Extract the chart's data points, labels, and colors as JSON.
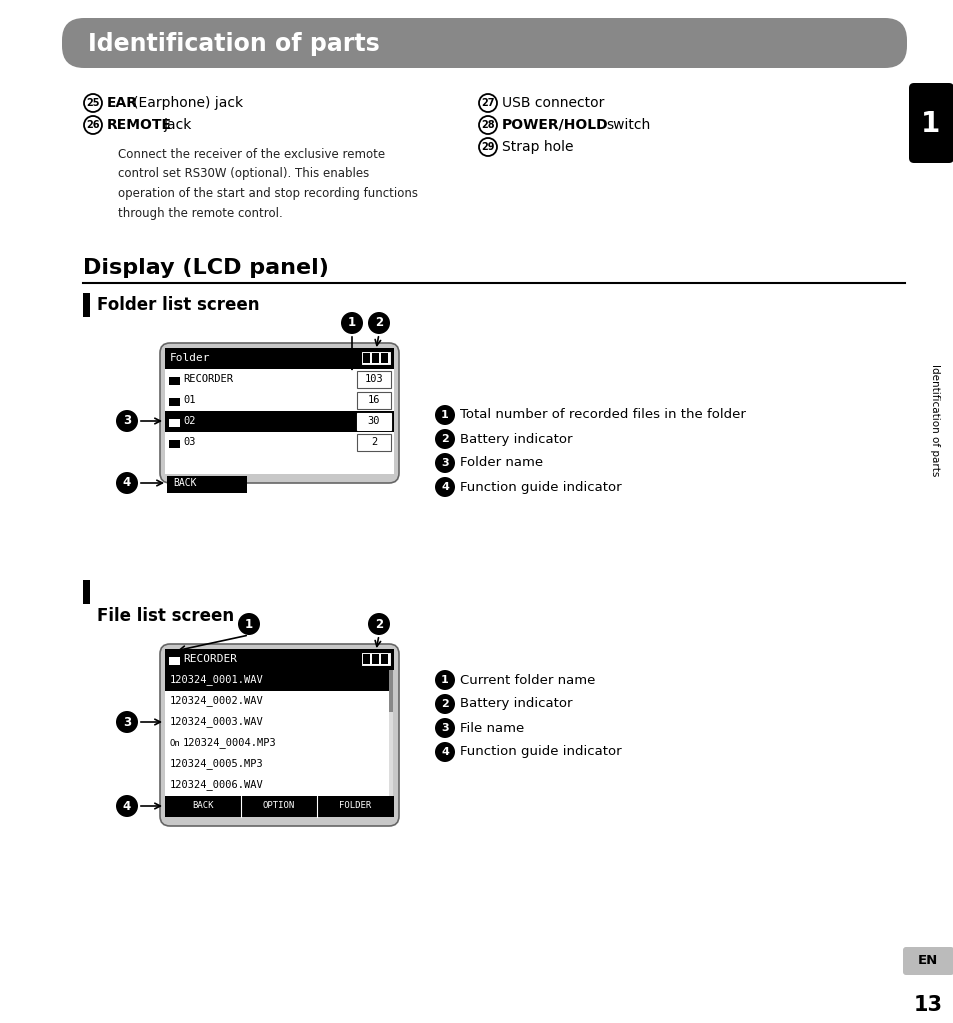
{
  "title": "Identification of parts",
  "title_bg": "#888888",
  "title_color": "#ffffff",
  "page_bg": "#ffffff",
  "section2_title": "Display (LCD panel)",
  "subsection1": "Folder list screen",
  "subsection2": "File list screen",
  "sidebar_text": "Identification of parts",
  "sidebar_num": "1",
  "page_num": "13",
  "lang": "EN",
  "left_items": [
    {
      "num": "25",
      "bold": "EAR",
      "rest": " (Earphone) jack"
    },
    {
      "num": "26",
      "bold": "REMOTE",
      "rest": " jack"
    },
    {
      "indent": "Connect the receiver of the exclusive remote\ncontrol set RS30W (optional). This enables\noperation of the start and stop recording functions\nthrough the remote control."
    }
  ],
  "right_items": [
    {
      "num": "27",
      "bold": "",
      "rest": "USB connector"
    },
    {
      "num": "28",
      "bold": "POWER/HOLD",
      "rest": " switch"
    },
    {
      "num": "29",
      "bold": "",
      "rest": "Strap hole"
    }
  ],
  "folder_screen": {
    "rows": [
      {
        "name": "RECORDER",
        "count": "103",
        "selected": false
      },
      {
        "name": "01",
        "count": "16",
        "selected": false
      },
      {
        "name": "02",
        "count": "30",
        "selected": true
      },
      {
        "name": "03",
        "count": "2",
        "selected": false
      }
    ],
    "bottom_bar": "BACK",
    "annotations": [
      {
        "num": "1",
        "text": "Total number of recorded files in the folder"
      },
      {
        "num": "2",
        "text": "Battery indicator"
      },
      {
        "num": "3",
        "text": "Folder name"
      },
      {
        "num": "4",
        "text": "Function guide indicator"
      }
    ]
  },
  "file_screen": {
    "rows": [
      {
        "name": "120324_0001.WAV",
        "selected": true,
        "locked": false
      },
      {
        "name": "120324_0002.WAV",
        "selected": false,
        "locked": false
      },
      {
        "name": "120324_0003.WAV",
        "selected": false,
        "locked": false
      },
      {
        "name": "120324_0004.MP3",
        "selected": false,
        "locked": true
      },
      {
        "name": "120324_0005.MP3",
        "selected": false,
        "locked": false
      },
      {
        "name": "120324_0006.WAV",
        "selected": false,
        "locked": false
      }
    ],
    "bottom_buttons": [
      "BACK",
      "OPTION",
      "FOLDER"
    ],
    "annotations": [
      {
        "num": "1",
        "text": "Current folder name"
      },
      {
        "num": "2",
        "text": "Battery indicator"
      },
      {
        "num": "3",
        "text": "File name"
      },
      {
        "num": "4",
        "text": "Function guide indicator"
      }
    ]
  }
}
